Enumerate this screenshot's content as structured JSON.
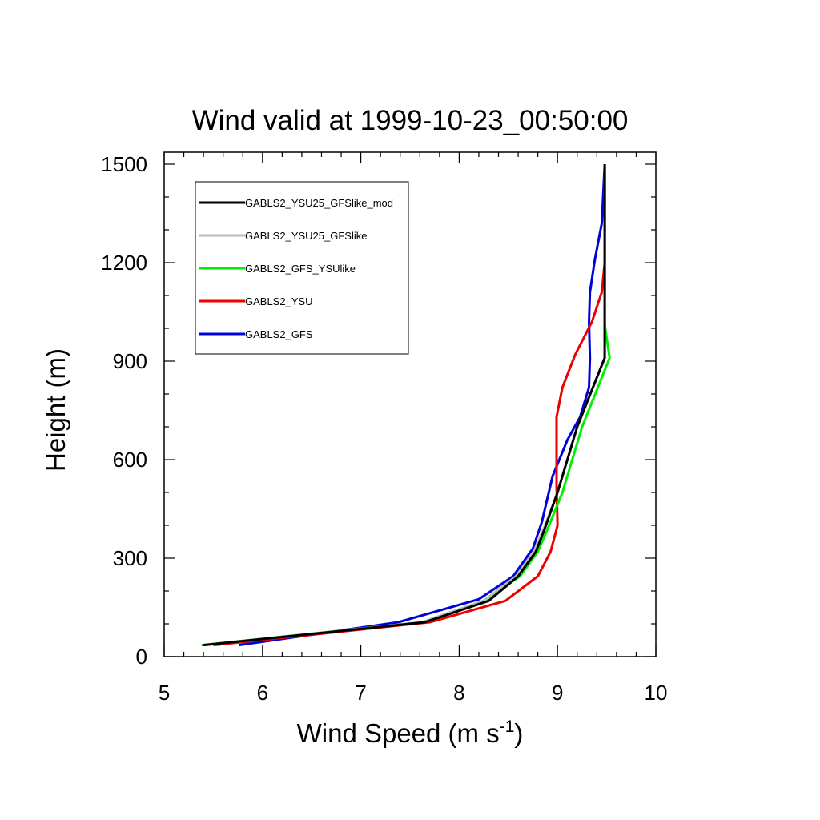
{
  "chart_data": {
    "type": "line",
    "title": "Wind valid at 1999-10-23_00:50:00",
    "xlabel": "Wind Speed (m s",
    "xlabel_sup": "-1",
    "xlabel_end": ")",
    "ylabel": "Height (m)",
    "xlim": [
      5,
      10
    ],
    "ylim": [
      0,
      1500
    ],
    "xticks": [
      "5",
      "6",
      "7",
      "8",
      "9",
      "10"
    ],
    "yticks": [
      "0",
      "300",
      "600",
      "900",
      "1200",
      "1500"
    ],
    "legend_position": "top-left",
    "series": [
      {
        "name": "GABLS2_YSU25_GFSlike_mod",
        "color": "#000000",
        "width": 3,
        "points": [
          [
            5.4,
            35
          ],
          [
            7.65,
            105
          ],
          [
            8.3,
            170
          ],
          [
            8.6,
            245
          ],
          [
            8.78,
            320
          ],
          [
            8.87,
            390
          ],
          [
            9.0,
            500
          ],
          [
            9.2,
            700
          ],
          [
            9.48,
            910
          ],
          [
            9.48,
            1010
          ],
          [
            9.48,
            1200
          ],
          [
            9.48,
            1500
          ]
        ]
      },
      {
        "name": "GABLS2_YSU25_GFSlike",
        "color": "#bbbbbb",
        "width": 3,
        "points": [
          [
            5.4,
            35
          ],
          [
            7.62,
            105
          ],
          [
            8.25,
            170
          ],
          [
            8.58,
            245
          ],
          [
            8.76,
            320
          ],
          [
            8.86,
            390
          ],
          [
            9.0,
            500
          ],
          [
            9.2,
            700
          ],
          [
            9.48,
            910
          ],
          [
            9.48,
            1010
          ],
          [
            9.48,
            1200
          ],
          [
            9.48,
            1500
          ]
        ]
      },
      {
        "name": "GABLS2_GFS_YSUlike",
        "color": "#00ee00",
        "width": 3,
        "points": [
          [
            5.38,
            35
          ],
          [
            7.62,
            105
          ],
          [
            8.25,
            170
          ],
          [
            8.62,
            245
          ],
          [
            8.8,
            320
          ],
          [
            8.9,
            390
          ],
          [
            9.05,
            500
          ],
          [
            9.25,
            700
          ],
          [
            9.53,
            910
          ],
          [
            9.48,
            1010
          ],
          [
            9.48,
            1200
          ],
          [
            9.48,
            1500
          ]
        ]
      },
      {
        "name": "GABLS2_YSU",
        "color": "#ee0000",
        "width": 3,
        "points": [
          [
            5.5,
            35
          ],
          [
            7.7,
            105
          ],
          [
            8.47,
            170
          ],
          [
            8.8,
            245
          ],
          [
            8.93,
            320
          ],
          [
            9.0,
            400
          ],
          [
            8.99,
            520
          ],
          [
            8.99,
            650
          ],
          [
            8.99,
            730
          ],
          [
            9.05,
            820
          ],
          [
            9.18,
            920
          ],
          [
            9.35,
            1020
          ],
          [
            9.45,
            1110
          ],
          [
            9.48,
            1200
          ],
          [
            9.48,
            1500
          ]
        ]
      },
      {
        "name": "GABLS2_GFS",
        "color": "#0000dd",
        "width": 3,
        "points": [
          [
            5.76,
            35
          ],
          [
            7.38,
            105
          ],
          [
            8.2,
            175
          ],
          [
            8.55,
            245
          ],
          [
            8.75,
            330
          ],
          [
            8.84,
            410
          ],
          [
            8.95,
            550
          ],
          [
            9.1,
            660
          ],
          [
            9.23,
            730
          ],
          [
            9.32,
            820
          ],
          [
            9.33,
            910
          ],
          [
            9.32,
            1020
          ],
          [
            9.33,
            1110
          ],
          [
            9.38,
            1210
          ],
          [
            9.45,
            1320
          ],
          [
            9.48,
            1500
          ]
        ]
      }
    ]
  }
}
